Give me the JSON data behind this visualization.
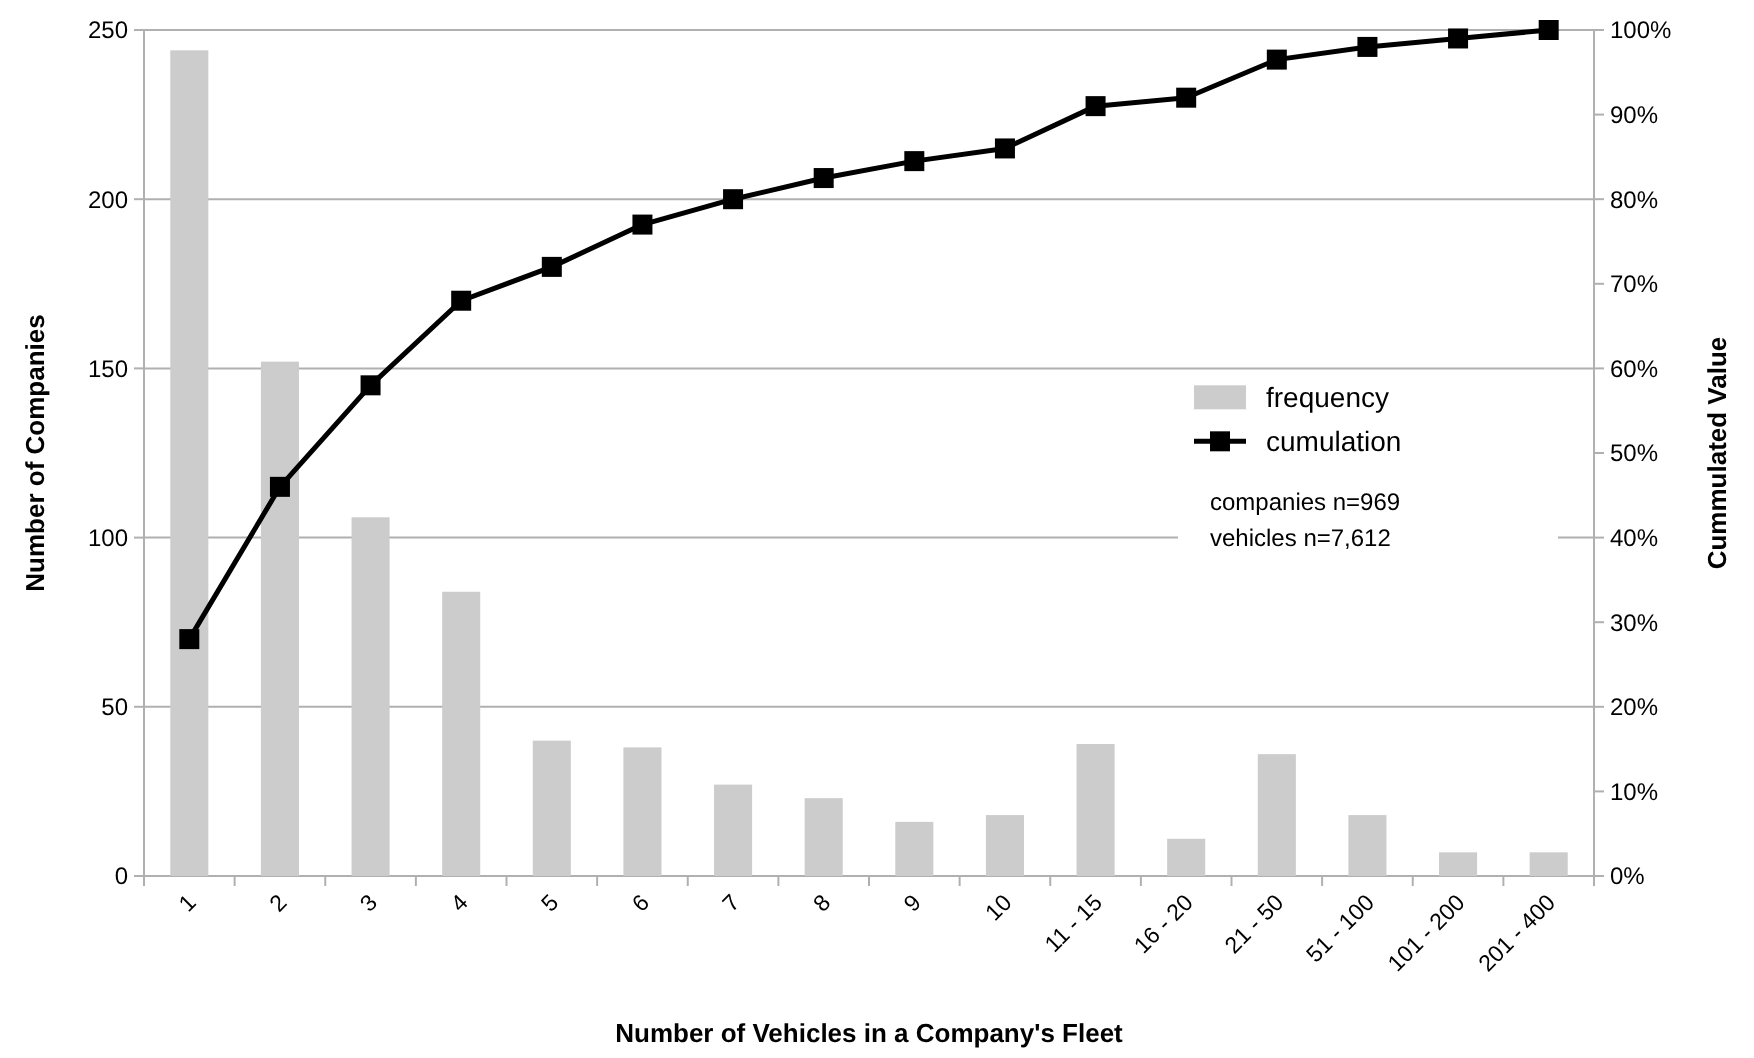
{
  "chart_data": {
    "type": "bar",
    "xlabel": "Number of Vehicles in a Company's Fleet",
    "ylabel": "Number of Companies",
    "y2label": "Cummulated Value",
    "categories": [
      "1",
      "2",
      "3",
      "4",
      "5",
      "6",
      "7",
      "8",
      "9",
      "10",
      "11 - 15",
      "16 - 20",
      "21 - 50",
      "51 - 100",
      "101 - 200",
      "201 - 400"
    ],
    "series": [
      {
        "name": "frequency",
        "color": "#cccccc",
        "values": [
          244,
          152,
          106,
          84,
          40,
          38,
          27,
          23,
          16,
          18,
          39,
          11,
          36,
          18,
          7,
          7
        ]
      },
      {
        "name": "cumulation",
        "type": "line",
        "axis": "y2",
        "color": "#000000",
        "marker": "square",
        "values": [
          28,
          46,
          58,
          68,
          72,
          77,
          80,
          82.5,
          84.5,
          86,
          91,
          92,
          96.5,
          98,
          99,
          100
        ]
      }
    ],
    "ylim": [
      0,
      250
    ],
    "yticks": [
      0,
      50,
      100,
      150,
      200,
      250
    ],
    "y2lim": [
      0,
      100
    ],
    "y2ticks": [
      {
        "value": 0,
        "label": "0%"
      },
      {
        "value": 10,
        "label": "10%"
      },
      {
        "value": 20,
        "label": "20%"
      },
      {
        "value": 30,
        "label": "30%"
      },
      {
        "value": 40,
        "label": "40%"
      },
      {
        "value": 50,
        "label": "50%"
      },
      {
        "value": 60,
        "label": "60%"
      },
      {
        "value": 70,
        "label": "70%"
      },
      {
        "value": 80,
        "label": "80%"
      },
      {
        "value": 90,
        "label": "90%"
      },
      {
        "value": 100,
        "label": "100%"
      }
    ],
    "grid": "y",
    "legend": "right",
    "annotations": [
      "companies n=969",
      "vehicles n=7,612"
    ]
  }
}
